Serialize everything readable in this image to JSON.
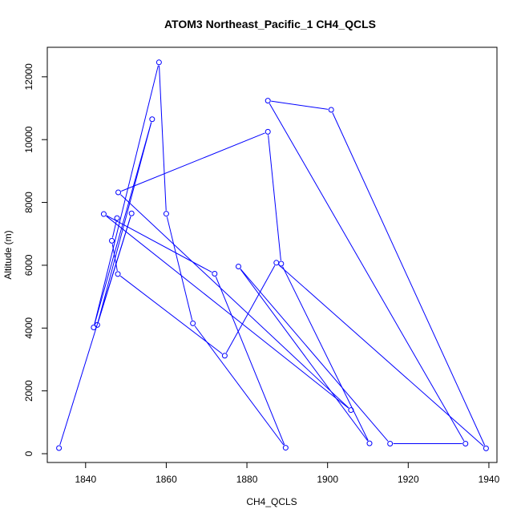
{
  "chart_data": {
    "type": "line",
    "title": "ATOM3 Northeast_Pacific_1 CH4_QCLS",
    "xlabel": "CH4_QCLS",
    "ylabel": "Altitude (m)",
    "xlim": [
      1830.5,
      1942
    ],
    "ylim": [
      -280,
      12940
    ],
    "x_ticks": [
      1840,
      1860,
      1880,
      1900,
      1920,
      1940
    ],
    "y_ticks": [
      0,
      2000,
      4000,
      6000,
      8000,
      10000,
      12000
    ],
    "grid": false,
    "legend": "none",
    "colors": {
      "series": "#0000ff",
      "axis": "#000000",
      "background": "#ffffff"
    },
    "series": [
      {
        "marker": "open-circle",
        "x": [
          1833.4,
          1851.4,
          1842.9,
          1856.5,
          1842.0,
          1858.2,
          1860.0,
          1866.6,
          1889.6,
          1872.0,
          1844.5,
          1905.8,
          1848.1,
          1885.2,
          1888.5,
          1910.4,
          1877.9,
          1915.5,
          1934.2,
          1885.2,
          1900.9,
          1939.3,
          1887.3,
          1874.5,
          1848.0,
          1846.5,
          1847.8
        ],
        "y": [
          180,
          7650,
          4100,
          10650,
          4020,
          12460,
          7640,
          4150,
          190,
          5730,
          7630,
          1390,
          8320,
          10250,
          6050,
          330,
          5960,
          320,
          320,
          11240,
          10950,
          170,
          6080,
          3120,
          5720,
          6780,
          7500
        ]
      }
    ]
  }
}
